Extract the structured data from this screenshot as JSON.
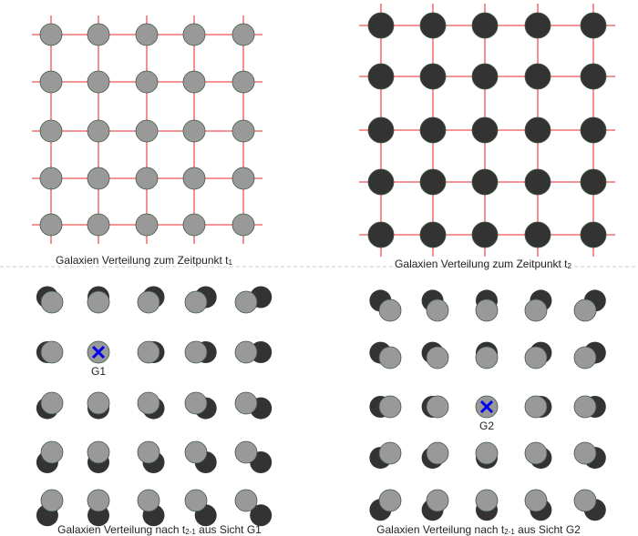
{
  "colors": {
    "grid": "#ee5555",
    "galaxy_t1": "#999999",
    "galaxy_t2": "#333333",
    "outline": "#3f5a45",
    "marker": "#0000ee",
    "divider": "#cccccc"
  },
  "panels": [
    {
      "caption_main": "Galaxien Verteilung zum Zeitpunkt t",
      "caption_sub": "1"
    },
    {
      "caption_main": "Galaxien Verteilung zum Zeitpunkt t",
      "caption_sub": "2"
    },
    {
      "caption_main": "Galaxien Verteilung nach t",
      "caption_sub": "2-1",
      "caption_tail": " aus Sicht G1",
      "observer": "G1"
    },
    {
      "caption_main": "Galaxien Verteilung nach t",
      "caption_sub": "2-1",
      "caption_tail": " aus Sicht G2",
      "observer": "G2"
    }
  ],
  "grid_size": [
    5,
    5
  ],
  "expansion_factor": 1.1,
  "observer_icon": "x-mark-icon"
}
